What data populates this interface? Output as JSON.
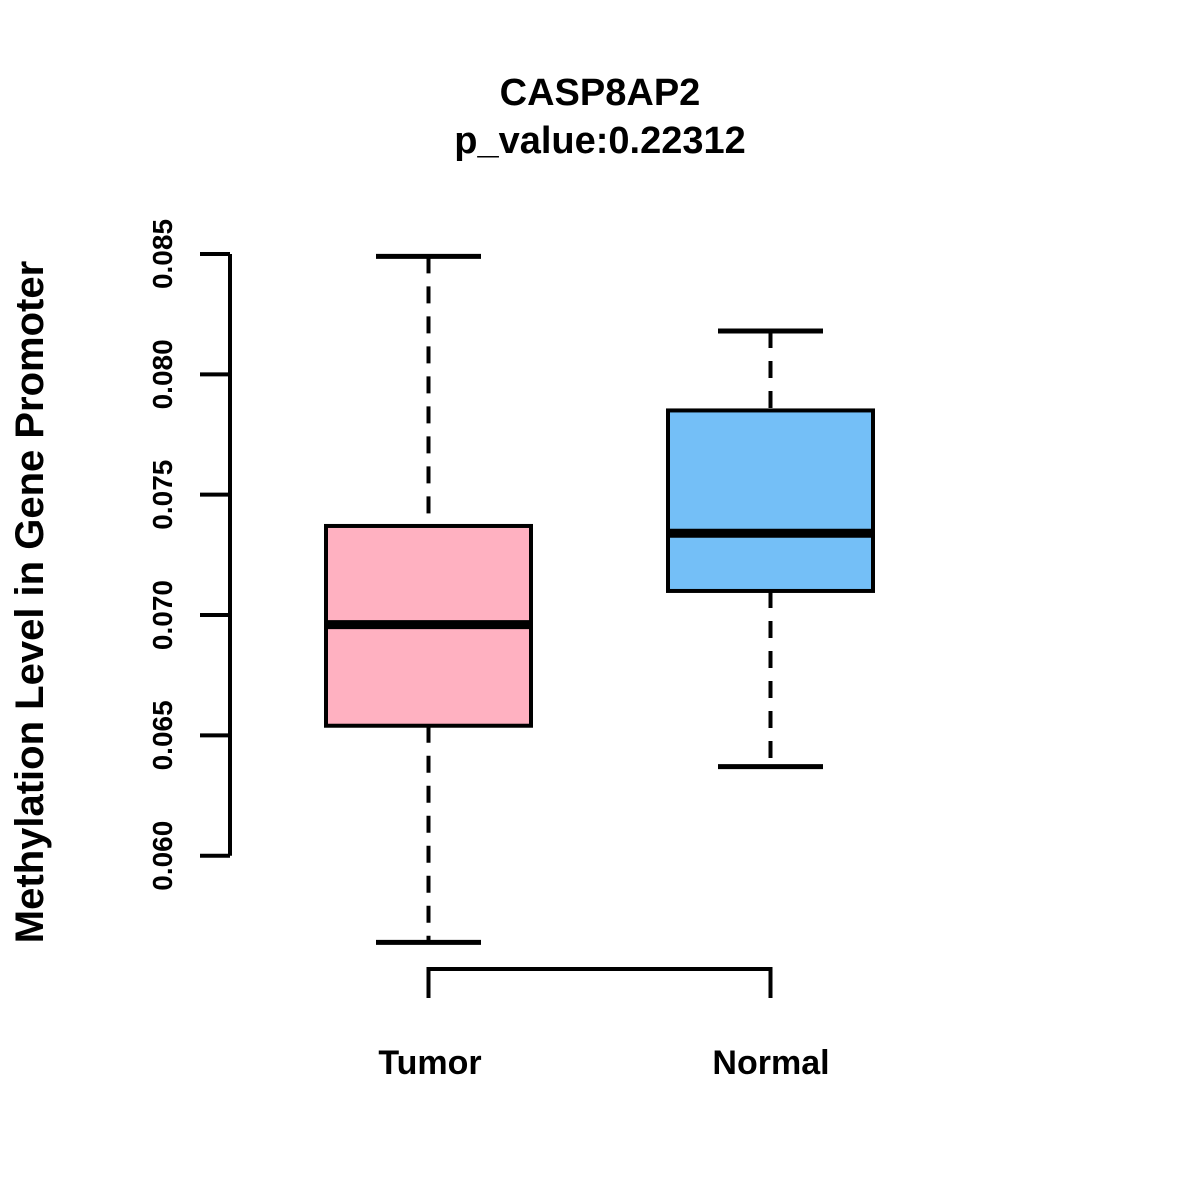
{
  "title": {
    "line1": "CASP8AP2",
    "line2": "p_value:0.22312"
  },
  "axes": {
    "y_label": "Methylation Level in Gene Promoter",
    "y_tick_labels": [
      "0.060",
      "0.065",
      "0.070",
      "0.075",
      "0.080",
      "0.085"
    ]
  },
  "colors": {
    "tumor_fill": "#FFB1C1",
    "normal_fill": "#74BFF7",
    "line": "#000000",
    "background": "#FFFFFF"
  },
  "chart_data": {
    "type": "boxplot",
    "title": "CASP8AP2",
    "subtitle": "p_value:0.22312",
    "xlabel": "",
    "ylabel": "Methylation Level in Gene Promoter",
    "categories": [
      "Tumor",
      "Normal"
    ],
    "ylim": [
      0.06,
      0.085
    ],
    "yticks": [
      0.06,
      0.065,
      0.07,
      0.075,
      0.08,
      0.085
    ],
    "ytick_labels": [
      "0.060",
      "0.065",
      "0.070",
      "0.075",
      "0.080",
      "0.085"
    ],
    "grid": false,
    "legend": "none",
    "whisker_style": "dashed",
    "series": [
      {
        "name": "Tumor",
        "color": "#FFB1C1",
        "whisker_low": 0.0564,
        "q1": 0.0654,
        "median": 0.0696,
        "q3": 0.0737,
        "whisker_high": 0.0849,
        "outliers": []
      },
      {
        "name": "Normal",
        "color": "#74BFF7",
        "whisker_low": 0.0637,
        "q1": 0.071,
        "median": 0.0734,
        "q3": 0.0785,
        "whisker_high": 0.0818,
        "outliers": []
      }
    ]
  }
}
